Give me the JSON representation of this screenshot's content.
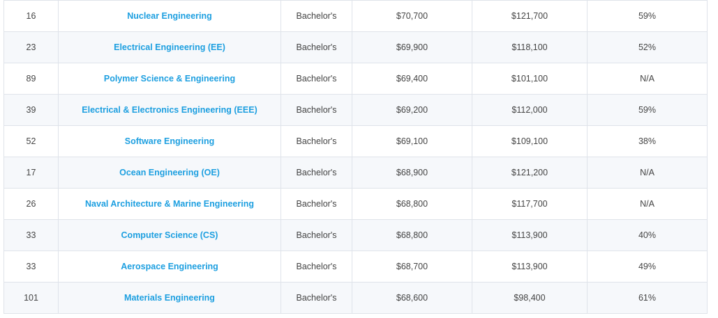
{
  "table": {
    "rows": [
      {
        "rank": "16",
        "major": "Nuclear Engineering",
        "degree": "Bachelor's",
        "early_pay": "$70,700",
        "mid_pay": "$121,700",
        "meaning": "59%"
      },
      {
        "rank": "23",
        "major": "Electrical Engineering (EE)",
        "degree": "Bachelor's",
        "early_pay": "$69,900",
        "mid_pay": "$118,100",
        "meaning": "52%"
      },
      {
        "rank": "89",
        "major": "Polymer Science & Engineering",
        "degree": "Bachelor's",
        "early_pay": "$69,400",
        "mid_pay": "$101,100",
        "meaning": "N/A"
      },
      {
        "rank": "39",
        "major": "Electrical & Electronics Engineering (EEE)",
        "degree": "Bachelor's",
        "early_pay": "$69,200",
        "mid_pay": "$112,000",
        "meaning": "59%"
      },
      {
        "rank": "52",
        "major": "Software Engineering",
        "degree": "Bachelor's",
        "early_pay": "$69,100",
        "mid_pay": "$109,100",
        "meaning": "38%"
      },
      {
        "rank": "17",
        "major": "Ocean Engineering (OE)",
        "degree": "Bachelor's",
        "early_pay": "$68,900",
        "mid_pay": "$121,200",
        "meaning": "N/A"
      },
      {
        "rank": "26",
        "major": "Naval Architecture & Marine Engineering",
        "degree": "Bachelor's",
        "early_pay": "$68,800",
        "mid_pay": "$117,700",
        "meaning": "N/A"
      },
      {
        "rank": "33",
        "major": "Computer Science (CS)",
        "degree": "Bachelor's",
        "early_pay": "$68,800",
        "mid_pay": "$113,900",
        "meaning": "40%"
      },
      {
        "rank": "33",
        "major": "Aerospace Engineering",
        "degree": "Bachelor's",
        "early_pay": "$68,700",
        "mid_pay": "$113,900",
        "meaning": "49%"
      },
      {
        "rank": "101",
        "major": "Materials Engineering",
        "degree": "Bachelor's",
        "early_pay": "$68,600",
        "mid_pay": "$98,400",
        "meaning": "61%"
      }
    ]
  },
  "colors": {
    "link": "#1d9fe0",
    "text": "#444444",
    "border": "#dfe3ea",
    "row_alt": "#f6f8fb"
  }
}
